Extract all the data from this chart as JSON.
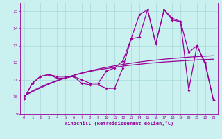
{
  "x": [
    0,
    1,
    2,
    3,
    4,
    5,
    6,
    7,
    8,
    9,
    10,
    11,
    12,
    13,
    14,
    15,
    16,
    17,
    18,
    19,
    20,
    21,
    22,
    23
  ],
  "line1": [
    9.9,
    10.8,
    11.2,
    11.3,
    11.1,
    11.1,
    11.2,
    10.8,
    10.7,
    10.7,
    10.5,
    10.5,
    11.7,
    13.4,
    13.5,
    15.1,
    13.1,
    15.1,
    14.5,
    14.4,
    10.4,
    13.0,
    12.0,
    9.8
  ],
  "line2": [
    9.9,
    10.8,
    11.2,
    11.3,
    11.2,
    11.2,
    11.2,
    11.0,
    10.8,
    10.8,
    11.5,
    11.7,
    12.1,
    13.4,
    14.8,
    15.1,
    13.1,
    15.1,
    14.6,
    14.4,
    12.6,
    13.0,
    11.9,
    9.8
  ],
  "regr1": [
    10.05,
    10.35,
    10.58,
    10.78,
    10.96,
    11.12,
    11.26,
    11.38,
    11.49,
    11.58,
    11.66,
    11.73,
    11.8,
    11.86,
    11.91,
    11.96,
    12.0,
    12.04,
    12.07,
    12.1,
    12.13,
    12.16,
    12.18,
    12.2
  ],
  "regr2": [
    10.05,
    10.3,
    10.53,
    10.74,
    10.93,
    11.1,
    11.26,
    11.4,
    11.52,
    11.63,
    11.73,
    11.82,
    11.9,
    11.97,
    12.04,
    12.1,
    12.15,
    12.2,
    12.24,
    12.28,
    12.32,
    12.35,
    12.38,
    12.4
  ],
  "bg_color": "#caf0f0",
  "line_color": "#990099",
  "grid_color": "#a8dada",
  "xlabel": "Windchill (Refroidissement éolien,°C)",
  "ylim": [
    9,
    15.5
  ],
  "xlim": [
    -0.5,
    23.5
  ],
  "yticks": [
    9,
    10,
    11,
    12,
    13,
    14,
    15
  ],
  "xticks": [
    0,
    1,
    2,
    3,
    4,
    5,
    6,
    7,
    8,
    9,
    10,
    11,
    12,
    13,
    14,
    15,
    16,
    17,
    18,
    19,
    20,
    21,
    22,
    23
  ]
}
